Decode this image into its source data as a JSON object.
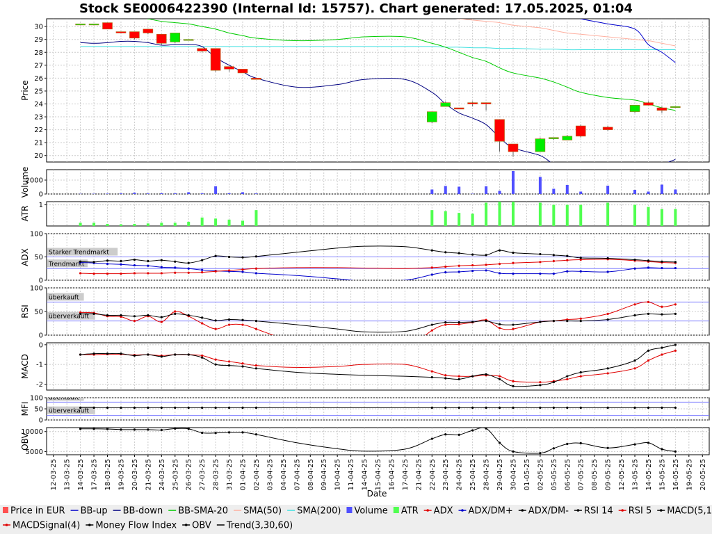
{
  "chart_data": {
    "type": "stock",
    "title": "Stock SE0006422390 (Internal Id: 15757). Chart generated: 17.05.2025, 01:04",
    "xlabel": "Date",
    "dates": [
      "12-03-25",
      "13-03-25",
      "14-03-25",
      "17-03-25",
      "18-03-25",
      "19-03-25",
      "20-03-25",
      "21-03-25",
      "24-03-25",
      "25-03-25",
      "26-03-25",
      "27-03-25",
      "28-03-25",
      "31-03-25",
      "01-04-25",
      "02-04-25",
      "03-04-25",
      "04-04-25",
      "07-04-25",
      "08-04-25",
      "09-04-25",
      "10-04-25",
      "11-04-25",
      "14-04-25",
      "15-04-25",
      "16-04-25",
      "17-04-25",
      "21-04-25",
      "22-04-25",
      "23-04-25",
      "24-04-25",
      "25-04-25",
      "28-04-25",
      "29-04-25",
      "30-04-25",
      "01-05-25",
      "02-05-25",
      "05-05-25",
      "06-05-25",
      "07-05-25",
      "08-05-25",
      "09-05-25",
      "12-05-25",
      "13-05-25",
      "14-05-25",
      "15-05-25",
      "16-05-25",
      "19-05-25",
      "20-05-25"
    ],
    "trading_days": [
      "14-03-25",
      "17-03-25",
      "18-03-25",
      "19-03-25",
      "20-03-25",
      "21-03-25",
      "24-03-25",
      "25-03-25",
      "26-03-25",
      "27-03-25",
      "28-03-25",
      "31-03-25",
      "01-04-25",
      "02-04-25",
      "22-04-25",
      "23-04-25",
      "24-04-25",
      "25-04-25",
      "28-04-25",
      "29-04-25",
      "30-04-25",
      "02-05-25",
      "05-05-25",
      "06-05-25",
      "07-05-25",
      "09-05-25",
      "13-05-25",
      "14-05-25",
      "15-05-25",
      "16-05-25"
    ],
    "curve_days": [
      "14-03-25",
      "17-03-25",
      "18-03-25",
      "19-03-25",
      "20-03-25",
      "21-03-25",
      "24-03-25",
      "25-03-25",
      "26-03-25",
      "27-03-25",
      "28-03-25",
      "31-03-25",
      "01-04-25",
      "02-04-25",
      "07-04-25",
      "10-04-25",
      "14-04-25",
      "17-04-25",
      "22-04-25",
      "23-04-25",
      "24-04-25",
      "25-04-25",
      "28-04-25",
      "29-04-25",
      "30-04-25",
      "02-05-25",
      "05-05-25",
      "06-05-25",
      "07-05-25",
      "09-05-25",
      "13-05-25",
      "14-05-25",
      "15-05-25",
      "16-05-25"
    ],
    "price": {
      "ylabel": "Price",
      "ylim": [
        19.5,
        30.6
      ],
      "yticks": [
        20,
        21,
        22,
        23,
        24,
        25,
        26,
        27,
        28,
        29,
        30
      ],
      "candles": [
        {
          "o": 30.2,
          "c": 30.2,
          "h": 30.2,
          "l": 30.2
        },
        {
          "o": 30.2,
          "c": 30.2,
          "h": 30.2,
          "l": 30.1
        },
        {
          "o": 30.3,
          "c": 29.8,
          "h": 30.3,
          "l": 29.8
        },
        {
          "o": 29.6,
          "c": 29.5,
          "h": 29.6,
          "l": 29.5
        },
        {
          "o": 29.6,
          "c": 29.1,
          "h": 29.6,
          "l": 29.0
        },
        {
          "o": 29.8,
          "c": 29.5,
          "h": 29.8,
          "l": 29.4
        },
        {
          "o": 29.4,
          "c": 28.7,
          "h": 29.4,
          "l": 28.6
        },
        {
          "o": 28.8,
          "c": 29.5,
          "h": 29.5,
          "l": 28.7
        },
        {
          "o": 29.0,
          "c": 29.0,
          "h": 29.0,
          "l": 29.0
        },
        {
          "o": 28.3,
          "c": 28.1,
          "h": 28.3,
          "l": 28.0
        },
        {
          "o": 28.3,
          "c": 26.6,
          "h": 28.3,
          "l": 26.5
        },
        {
          "o": 26.9,
          "c": 26.7,
          "h": 26.9,
          "l": 26.5
        },
        {
          "o": 26.7,
          "c": 26.4,
          "h": 26.7,
          "l": 26.4
        },
        {
          "o": 26.0,
          "c": 25.9,
          "h": 26.0,
          "l": 25.9
        },
        {
          "o": 22.6,
          "c": 23.4,
          "h": 23.4,
          "l": 22.5
        },
        {
          "o": 23.8,
          "c": 24.1,
          "h": 24.2,
          "l": 23.8
        },
        {
          "o": 23.7,
          "c": 23.6,
          "h": 23.7,
          "l": 23.6
        },
        {
          "o": 24.1,
          "c": 24.0,
          "h": 24.2,
          "l": 23.8
        },
        {
          "o": 24.1,
          "c": 24.0,
          "h": 24.1,
          "l": 23.5
        },
        {
          "o": 22.8,
          "c": 21.1,
          "h": 22.8,
          "l": 20.3
        },
        {
          "o": 20.9,
          "c": 20.3,
          "h": 20.9,
          "l": 19.9
        },
        {
          "o": 20.3,
          "c": 21.3,
          "h": 21.4,
          "l": 20.3
        },
        {
          "o": 21.3,
          "c": 21.4,
          "h": 21.4,
          "l": 21.2
        },
        {
          "o": 21.2,
          "c": 21.5,
          "h": 21.6,
          "l": 21.2
        },
        {
          "o": 22.3,
          "c": 21.5,
          "h": 22.4,
          "l": 21.4
        },
        {
          "o": 22.2,
          "c": 22.0,
          "h": 22.3,
          "l": 21.9
        },
        {
          "o": 23.4,
          "c": 23.9,
          "h": 23.9,
          "l": 23.3
        },
        {
          "o": 24.1,
          "c": 23.9,
          "h": 24.2,
          "l": 23.9
        },
        {
          "o": 23.7,
          "c": 23.5,
          "h": 23.8,
          "l": 23.3
        },
        {
          "o": 23.8,
          "c": 23.8,
          "h": 23.8,
          "l": 23.8
        }
      ],
      "bb_up": [
        35.0,
        35.0,
        35.1,
        35.2,
        35.1,
        35.0,
        34.8,
        34.6,
        34.4,
        34.2,
        34.3,
        34.4,
        34.5,
        34.6,
        34.3,
        34.0,
        33.8,
        33.6,
        33.3,
        33.2,
        33.0,
        32.8,
        32.7,
        32.4,
        32.0,
        31.6,
        31.3,
        30.9,
        30.6,
        30.2,
        29.8,
        28.6,
        28.0,
        27.2
      ],
      "bb_down": [
        28.75,
        28.7,
        28.75,
        28.85,
        28.85,
        28.75,
        28.55,
        28.6,
        28.6,
        28.45,
        27.6,
        27.0,
        26.5,
        26.0,
        25.3,
        25.5,
        25.9,
        25.9,
        24.9,
        24.0,
        23.3,
        22.9,
        22.4,
        21.4,
        20.6,
        20.0,
        19.3,
        18.8,
        18.5,
        18.5,
        18.6,
        18.9,
        19.3,
        19.7
      ],
      "bb_sma20": [
        31.9,
        31.6,
        31.3,
        31.0,
        30.8,
        30.6,
        30.4,
        30.3,
        30.2,
        30.0,
        29.8,
        29.5,
        29.3,
        29.1,
        28.9,
        29.0,
        29.2,
        29.2,
        28.7,
        28.4,
        28.0,
        27.6,
        27.3,
        26.8,
        26.4,
        26.0,
        25.7,
        25.3,
        24.9,
        24.5,
        24.3,
        24.0,
        23.7,
        23.5
      ],
      "sma50": [
        33.5,
        33.4,
        33.3,
        33.2,
        33.1,
        33.0,
        32.9,
        32.8,
        32.7,
        32.6,
        32.5,
        32.3,
        32.2,
        32.1,
        31.9,
        31.6,
        31.4,
        31.2,
        30.8,
        30.7,
        30.6,
        30.5,
        30.4,
        30.3,
        30.1,
        29.9,
        29.7,
        29.5,
        29.4,
        29.2,
        29.0,
        28.9,
        28.7,
        28.5
      ],
      "sma200": [
        28.45,
        28.45,
        28.45,
        28.45,
        28.45,
        28.45,
        28.45,
        28.45,
        28.45,
        28.45,
        28.45,
        28.45,
        28.45,
        28.45,
        28.45,
        28.45,
        28.45,
        28.45,
        28.45,
        28.4,
        28.4,
        28.35,
        28.35,
        28.3,
        28.3,
        28.25,
        28.25,
        28.2,
        28.2,
        28.2,
        28.2,
        28.2,
        28.2,
        28.2
      ]
    },
    "volume": {
      "ylabel": "Volume",
      "ylim": [
        0,
        3500
      ],
      "yticks": [
        0,
        2000
      ],
      "values": [
        30,
        40,
        60,
        90,
        200,
        80,
        100,
        90,
        250,
        90,
        1100,
        100,
        250,
        80,
        650,
        1150,
        1050,
        40,
        1100,
        450,
        3300,
        2450,
        750,
        1300,
        350,
        1200,
        600,
        350,
        1350,
        650
      ]
    },
    "atr": {
      "ylabel": "ATR",
      "ylim": [
        0,
        1.15
      ],
      "yticks": [
        1
      ],
      "values": [
        0.15,
        0.15,
        0.1,
        0.08,
        0.1,
        0.12,
        0.15,
        0.15,
        0.2,
        0.4,
        0.35,
        0.3,
        0.25,
        0.75,
        0.75,
        0.7,
        0.62,
        0.58,
        1.1,
        1.2,
        1.2,
        1.1,
        1.0,
        1.0,
        1.0,
        1.1,
        1.0,
        0.9,
        0.8,
        0.8
      ]
    },
    "adx": {
      "ylabel": "ADX",
      "ylim": [
        0,
        100
      ],
      "yticks": [
        0,
        50,
        100
      ],
      "annotations": [
        {
          "label": "Starker Trendmarkt",
          "y": 50
        },
        {
          "label": "Trendmarkt",
          "y": 25
        }
      ],
      "adx": [
        40,
        39,
        42,
        41,
        44,
        41,
        43,
        40,
        37,
        43,
        52,
        50,
        49,
        51,
        60,
        69,
        73,
        72,
        64,
        60,
        58,
        55,
        54,
        64,
        59,
        56,
        54,
        52,
        48,
        47,
        44,
        42,
        40,
        39
      ],
      "dm_plus": [
        38,
        37,
        35,
        34,
        32,
        31,
        28,
        27,
        25,
        22,
        20,
        19,
        18,
        15,
        10,
        3,
        -2,
        0,
        12,
        17,
        18,
        20,
        21,
        15,
        14,
        14,
        14,
        19,
        19,
        18,
        25,
        27,
        26,
        26
      ],
      "dm_minus": [
        15,
        14,
        14,
        14,
        15,
        15,
        15,
        16,
        16,
        17,
        19,
        21,
        23,
        25,
        27,
        27,
        26,
        25,
        27,
        29,
        31,
        32,
        33,
        35,
        37,
        39,
        41,
        43,
        44,
        45,
        42,
        40,
        38,
        37
      ]
    },
    "rsi": {
      "ylabel": "RSI",
      "ylim": [
        0,
        100
      ],
      "yticks": [
        0,
        50,
        100
      ],
      "annotations": [
        {
          "label": "überkauft",
          "y": 70
        },
        {
          "label": "überverkauft",
          "y": 30
        }
      ],
      "rsi14": [
        45,
        45,
        42,
        42,
        40,
        42,
        38,
        45,
        42,
        37,
        31,
        33,
        32,
        30,
        22,
        13,
        7,
        8,
        22,
        27,
        27,
        28,
        30,
        23,
        22,
        28,
        30,
        30,
        30,
        33,
        42,
        45,
        44,
        45
      ],
      "rsi5": [
        48,
        47,
        40,
        39,
        30,
        40,
        28,
        50,
        40,
        25,
        13,
        22,
        22,
        13,
        -20,
        -60,
        -50,
        -30,
        10,
        22,
        23,
        27,
        32,
        15,
        13,
        28,
        30,
        33,
        35,
        45,
        65,
        70,
        60,
        65
      ]
    },
    "macd": {
      "ylabel": "MACD",
      "ylim": [
        -2.3,
        0.1
      ],
      "yticks": [
        0,
        -1,
        -2
      ],
      "macd": [
        -0.5,
        -0.45,
        -0.45,
        -0.45,
        -0.55,
        -0.5,
        -0.6,
        -0.5,
        -0.5,
        -0.65,
        -1.0,
        -1.05,
        -1.1,
        -1.2,
        -1.4,
        -1.5,
        -1.55,
        -1.6,
        -1.65,
        -1.7,
        -1.75,
        -1.6,
        -1.5,
        -1.75,
        -2.1,
        -2.05,
        -1.9,
        -1.6,
        -1.4,
        -1.2,
        -0.8,
        -0.3,
        -0.15,
        0.0
      ],
      "signal": [
        -0.5,
        -0.5,
        -0.48,
        -0.48,
        -0.52,
        -0.5,
        -0.55,
        -0.5,
        -0.5,
        -0.55,
        -0.75,
        -0.85,
        -0.95,
        -1.05,
        -1.15,
        -1.1,
        -1.0,
        -1.0,
        -1.35,
        -1.55,
        -1.6,
        -1.6,
        -1.55,
        -1.6,
        -1.85,
        -1.9,
        -1.85,
        -1.75,
        -1.6,
        -1.45,
        -1.2,
        -0.8,
        -0.5,
        -0.3
      ]
    },
    "mfi": {
      "ylabel": "MFI",
      "ylim": [
        0,
        100
      ],
      "yticks": [
        0,
        50,
        100
      ],
      "annotations": [
        {
          "label": "überkauft",
          "y": 80
        },
        {
          "label": "überverkauft",
          "y": 20
        }
      ],
      "values": [
        55,
        55,
        55,
        55,
        55,
        55,
        55,
        55,
        55,
        55,
        55,
        55,
        55,
        55,
        55,
        55,
        55,
        55,
        55,
        55,
        55,
        55,
        55,
        55,
        55,
        55,
        55,
        55,
        55,
        55,
        55,
        55,
        55,
        55
      ]
    },
    "obv": {
      "ylabel": "OBV",
      "ylim": [
        4200,
        11000
      ],
      "yticks": [
        5000,
        10000
      ],
      "values": [
        10700,
        10700,
        10650,
        10500,
        10500,
        10500,
        10400,
        10750,
        10700,
        9700,
        9650,
        9800,
        9800,
        9300,
        7200,
        5700,
        5100,
        5600,
        8200,
        9300,
        9200,
        10300,
        10800,
        7200,
        5000,
        4600,
        5800,
        6900,
        7100,
        5900,
        6800,
        7200,
        5600,
        5000
      ]
    },
    "legend": [
      {
        "label": "Price in EUR",
        "color": "#ff5050",
        "kind": "box"
      },
      {
        "label": "BB-up",
        "color": "#0000cc",
        "kind": "line"
      },
      {
        "label": "BB-down",
        "color": "#000080",
        "kind": "line"
      },
      {
        "label": "BB-SMA-20",
        "color": "#00cc00",
        "kind": "line"
      },
      {
        "label": "SMA(50)",
        "color": "#ffb0a0",
        "kind": "line"
      },
      {
        "label": "SMA(200)",
        "color": "#40e0e0",
        "kind": "line"
      },
      {
        "label": "Volume",
        "color": "#5050ff",
        "kind": "box"
      },
      {
        "label": "ATR",
        "color": "#50ff50",
        "kind": "box"
      },
      {
        "label": "ADX",
        "color": "#e00000",
        "kind": "dotline"
      },
      {
        "label": "ADX/DM+",
        "color": "#0000cc",
        "kind": "dotline"
      },
      {
        "label": "ADX/DM-",
        "color": "#000000",
        "kind": "dotline"
      },
      {
        "label": "RSI 14",
        "color": "#000000",
        "kind": "dotline"
      },
      {
        "label": "RSI 5",
        "color": "#e00000",
        "kind": "dotline"
      },
      {
        "label": "MACD(5,13)",
        "color": "#000000",
        "kind": "dotline"
      },
      {
        "label": "MACDSignal(4)",
        "color": "#e00000",
        "kind": "dotline"
      },
      {
        "label": "Money Flow Index",
        "color": "#000000",
        "kind": "dotline"
      },
      {
        "label": "OBV",
        "color": "#000000",
        "kind": "dotline"
      },
      {
        "label": "Trend(3,30,60)",
        "color": "#000000",
        "kind": "line"
      }
    ],
    "colors": {
      "up": "#00ee00",
      "down": "#ff0000",
      "annot_bg": "#cccccc",
      "ref_line": "#8080ff"
    }
  }
}
